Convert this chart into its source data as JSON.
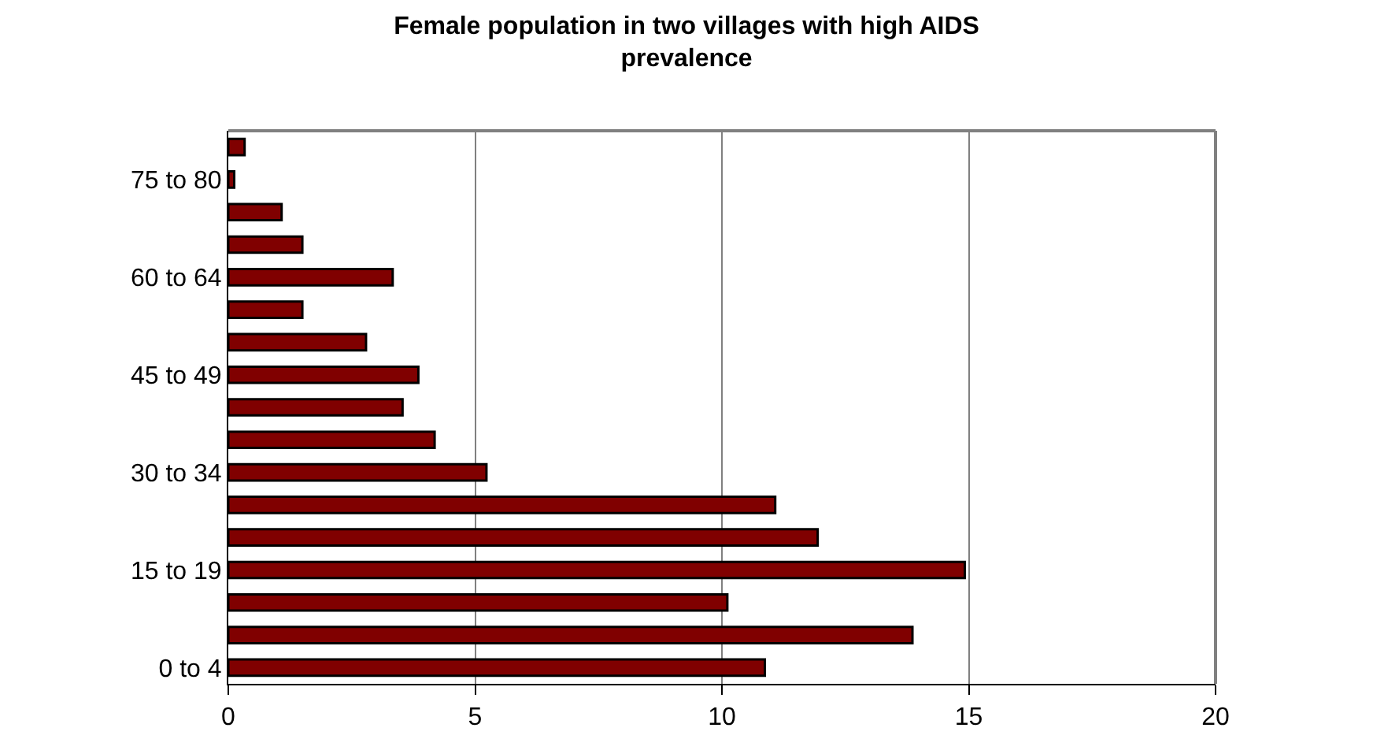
{
  "chart_data": {
    "type": "bar",
    "orientation": "horizontal",
    "title": "Female population in two villages with high AIDS prevalence",
    "categories": [
      null,
      "75 to 80",
      null,
      null,
      "60 to 64",
      null,
      null,
      "45 to 49",
      null,
      null,
      "30 to 34",
      null,
      null,
      "15 to 19",
      null,
      null,
      "0 to 4"
    ],
    "values": [
      0.33,
      0.12,
      1.08,
      1.5,
      3.33,
      1.5,
      2.79,
      3.85,
      3.53,
      4.18,
      5.23,
      11.08,
      11.94,
      14.92,
      10.11,
      13.86,
      10.87
    ],
    "color": "#800000",
    "xlim": [
      0,
      20
    ],
    "xticks": [
      0,
      5,
      10,
      15,
      20
    ],
    "grid": "x"
  }
}
